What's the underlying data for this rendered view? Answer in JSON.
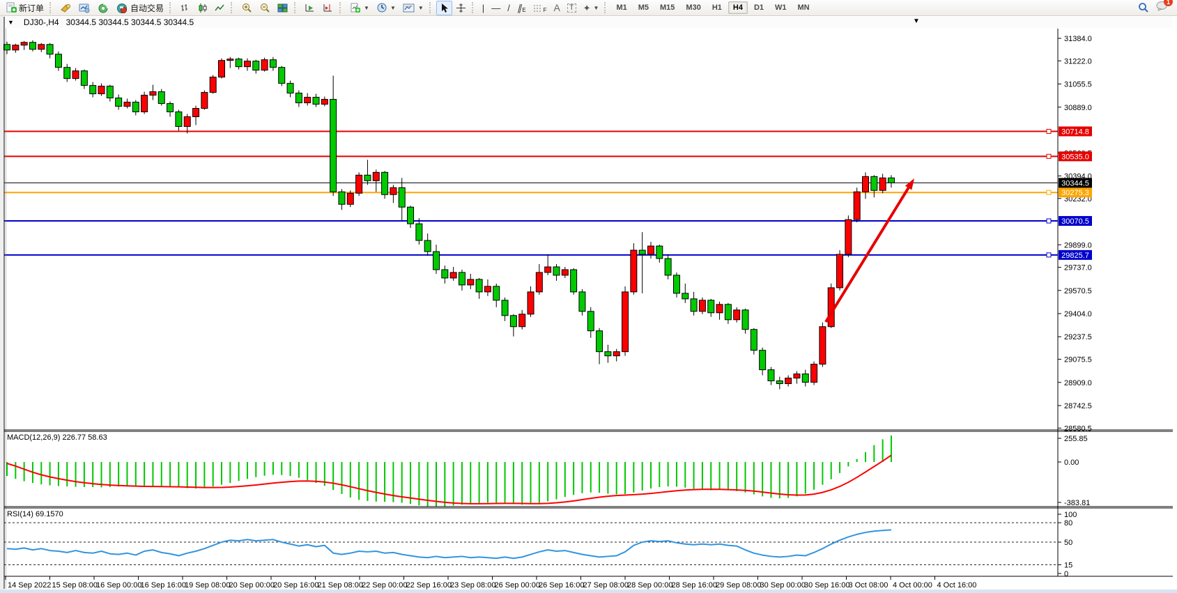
{
  "toolbar": {
    "new_order": "新订单",
    "autotrading": "自动交易",
    "timeframes": [
      "M1",
      "M5",
      "M15",
      "M30",
      "H1",
      "H4",
      "D1",
      "W1",
      "MN"
    ],
    "active_timeframe": "H4",
    "chat_badge": "1",
    "tool_glyphs": {
      "cursor": "➤",
      "crosshair": "+",
      "vline": "|",
      "hline": "—",
      "trendline": "/",
      "channel": "∥",
      "channel_sub": "E",
      "fibo_sub": "F",
      "text": "A",
      "label": "T",
      "arrows": "✦"
    }
  },
  "chart": {
    "collapse_arrow": "▼",
    "symbol_period": "DJ30-,H4",
    "ohlc": "30344.5 30344.5 30344.5 30344.5"
  },
  "chart_data": {
    "type": "candlestick",
    "symbol": "DJ30-",
    "period": "H4",
    "title": "DJ30-,H4 30344.5 30344.5 30344.5 30344.5",
    "colors": {
      "up": "#ff0000",
      "down": "#00ca00",
      "wick": "#000000",
      "macd_hist": "#00c800",
      "macd_signal": "#ff0000",
      "rsi_line": "#3194e0",
      "line_red": "#e60000",
      "line_orange": "#ffa500",
      "line_blue": "#0000cc",
      "current_badge": "#000000",
      "arrow": "#e60000"
    },
    "price_axis_ticks": [
      31384.0,
      31222.0,
      31055.5,
      30889.0,
      30560.5,
      30394.0,
      30232.0,
      29899.0,
      29737.0,
      29570.5,
      29404.0,
      29237.5,
      29075.5,
      28909.0,
      28742.5,
      28580.5
    ],
    "hlines": [
      {
        "price": 30714.8,
        "color": "#e60000"
      },
      {
        "price": 30535.0,
        "color": "#e60000"
      },
      {
        "price": 30275.3,
        "color": "#ffa500"
      },
      {
        "price": 30070.5,
        "color": "#0000cc"
      },
      {
        "price": 29825.7,
        "color": "#0000cc"
      }
    ],
    "current_price": 30344.5,
    "candles": [
      [
        31340,
        31360,
        31270,
        31300
      ],
      [
        31300,
        31345,
        31280,
        31335
      ],
      [
        31335,
        31365,
        31300,
        31355
      ],
      [
        31355,
        31370,
        31290,
        31305
      ],
      [
        31305,
        31350,
        31285,
        31340
      ],
      [
        31340,
        31350,
        31240,
        31270
      ],
      [
        31270,
        31290,
        31150,
        31175
      ],
      [
        31175,
        31200,
        31070,
        31095
      ],
      [
        31095,
        31170,
        31080,
        31150
      ],
      [
        31150,
        31160,
        31020,
        31045
      ],
      [
        31045,
        31070,
        30960,
        30985
      ],
      [
        30985,
        31060,
        30970,
        31040
      ],
      [
        31040,
        31050,
        30930,
        30955
      ],
      [
        30955,
        30980,
        30870,
        30895
      ],
      [
        30895,
        30950,
        30880,
        30925
      ],
      [
        30925,
        30940,
        30830,
        30855
      ],
      [
        30855,
        31000,
        30840,
        30975
      ],
      [
        30975,
        31050,
        30940,
        31000
      ],
      [
        31000,
        31020,
        30900,
        30915
      ],
      [
        30915,
        30930,
        30820,
        30855
      ],
      [
        30855,
        30870,
        30720,
        30750
      ],
      [
        30750,
        30840,
        30700,
        30820
      ],
      [
        30820,
        30900,
        30760,
        30880
      ],
      [
        30880,
        31010,
        30870,
        30995
      ],
      [
        30995,
        31120,
        30985,
        31105
      ],
      [
        31105,
        31240,
        31095,
        31225
      ],
      [
        31225,
        31250,
        31170,
        31235
      ],
      [
        31235,
        31245,
        31160,
        31180
      ],
      [
        31180,
        31240,
        31150,
        31220
      ],
      [
        31220,
        31230,
        31130,
        31155
      ],
      [
        31155,
        31245,
        31145,
        31230
      ],
      [
        31230,
        31250,
        31150,
        31175
      ],
      [
        31175,
        31185,
        31040,
        31060
      ],
      [
        31060,
        31080,
        30960,
        30990
      ],
      [
        30990,
        31010,
        30890,
        30920
      ],
      [
        30920,
        30990,
        30900,
        30960
      ],
      [
        30960,
        30985,
        30890,
        30910
      ],
      [
        30910,
        30965,
        30895,
        30945
      ],
      [
        30945,
        31115,
        30250,
        30280
      ],
      [
        30280,
        30300,
        30150,
        30190
      ],
      [
        30190,
        30290,
        30170,
        30270
      ],
      [
        30270,
        30420,
        30250,
        30400
      ],
      [
        30400,
        30510,
        30330,
        30360
      ],
      [
        30360,
        30440,
        30280,
        30420
      ],
      [
        30420,
        30430,
        30230,
        30260
      ],
      [
        30260,
        30330,
        30200,
        30310
      ],
      [
        30310,
        30380,
        30075,
        30170
      ],
      [
        30170,
        30180,
        30020,
        30050
      ],
      [
        30050,
        30090,
        29900,
        29930
      ],
      [
        29930,
        29980,
        29820,
        29850
      ],
      [
        29850,
        29900,
        29690,
        29720
      ],
      [
        29720,
        29750,
        29620,
        29660
      ],
      [
        29660,
        29740,
        29640,
        29700
      ],
      [
        29700,
        29720,
        29570,
        29610
      ],
      [
        29610,
        29690,
        29580,
        29650
      ],
      [
        29650,
        29660,
        29510,
        29560
      ],
      [
        29560,
        29650,
        29530,
        29600
      ],
      [
        29600,
        29620,
        29450,
        29500
      ],
      [
        29500,
        29520,
        29350,
        29390
      ],
      [
        29390,
        29400,
        29240,
        29310
      ],
      [
        29310,
        29430,
        29290,
        29400
      ],
      [
        29400,
        29600,
        29380,
        29560
      ],
      [
        29560,
        29760,
        29540,
        29700
      ],
      [
        29700,
        29830,
        29680,
        29740
      ],
      [
        29740,
        29760,
        29640,
        29680
      ],
      [
        29680,
        29740,
        29660,
        29720
      ],
      [
        29720,
        29730,
        29540,
        29560
      ],
      [
        29560,
        29580,
        29390,
        29420
      ],
      [
        29420,
        29450,
        29230,
        29280
      ],
      [
        29280,
        29300,
        29040,
        29130
      ],
      [
        29130,
        29180,
        29050,
        29100
      ],
      [
        29100,
        29150,
        29060,
        29130
      ],
      [
        29130,
        29600,
        29100,
        29560
      ],
      [
        29560,
        29910,
        29540,
        29860
      ],
      [
        29860,
        29990,
        29550,
        29830
      ],
      [
        29830,
        29920,
        29800,
        29890
      ],
      [
        29890,
        29900,
        29770,
        29800
      ],
      [
        29800,
        29830,
        29650,
        29680
      ],
      [
        29680,
        29700,
        29520,
        29550
      ],
      [
        29550,
        29620,
        29480,
        29510
      ],
      [
        29510,
        29560,
        29390,
        29420
      ],
      [
        29420,
        29520,
        29400,
        29500
      ],
      [
        29500,
        29510,
        29380,
        29410
      ],
      [
        29410,
        29490,
        29360,
        29470
      ],
      [
        29470,
        29480,
        29330,
        29360
      ],
      [
        29360,
        29450,
        29340,
        29430
      ],
      [
        29430,
        29440,
        29260,
        29290
      ],
      [
        29290,
        29300,
        29110,
        29140
      ],
      [
        29140,
        29160,
        28960,
        29000
      ],
      [
        29000,
        29020,
        28890,
        28920
      ],
      [
        28920,
        28950,
        28860,
        28900
      ],
      [
        28900,
        28960,
        28880,
        28940
      ],
      [
        28940,
        28990,
        28900,
        28970
      ],
      [
        28970,
        29000,
        28880,
        28910
      ],
      [
        28910,
        29060,
        28890,
        29040
      ],
      [
        29040,
        29340,
        29020,
        29310
      ],
      [
        29310,
        29620,
        29300,
        29590
      ],
      [
        29590,
        29860,
        29570,
        29830
      ],
      [
        29830,
        30110,
        29810,
        30080
      ],
      [
        30080,
        30310,
        30060,
        30280
      ],
      [
        30280,
        30420,
        30230,
        30390
      ],
      [
        30390,
        30400,
        30240,
        30290
      ],
      [
        30290,
        30410,
        30270,
        30380
      ],
      [
        30380,
        30400,
        30310,
        30344.5
      ]
    ],
    "time_labels": [
      "14 Sep 2022",
      "15 Sep 08:00",
      "16 Sep 00:00",
      "16 Sep 16:00",
      "19 Sep 08:00",
      "20 Sep 00:00",
      "20 Sep 16:00",
      "21 Sep 08:00",
      "22 Sep 00:00",
      "22 Sep 16:00",
      "23 Sep 08:00",
      "26 Sep 00:00",
      "26 Sep 16:00",
      "27 Sep 08:00",
      "28 Sep 00:00",
      "28 Sep 16:00",
      "29 Sep 08:00",
      "30 Sep 00:00",
      "30 Sep 16:00",
      "3 Oct 08:00",
      "4 Oct 00:00",
      "4 Oct 16:00"
    ],
    "macd": {
      "label": "MACD(12,26,9) 226.77 58.63",
      "value": 226.77,
      "signal_value": 58.63,
      "axis_ticks": [
        "255.85",
        "0.00",
        "-383.81"
      ],
      "histogram": [
        -120,
        -145,
        -165,
        -180,
        -192,
        -200,
        -206,
        -210,
        -213,
        -215,
        -215,
        -218,
        -215,
        -210,
        -205,
        -208,
        -212,
        -210,
        -205,
        -210,
        -218,
        -225,
        -228,
        -222,
        -210,
        -195,
        -180,
        -162,
        -145,
        -130,
        -118,
        -110,
        -112,
        -120,
        -135,
        -155,
        -180,
        -205,
        -240,
        -275,
        -305,
        -325,
        -335,
        -340,
        -342,
        -345,
        -350,
        -360,
        -372,
        -380,
        -383,
        -380,
        -374,
        -366,
        -358,
        -352,
        -350,
        -352,
        -356,
        -362,
        -366,
        -362,
        -352,
        -338,
        -320,
        -300,
        -282,
        -268,
        -262,
        -264,
        -272,
        -278,
        -275,
        -262,
        -245,
        -228,
        -215,
        -210,
        -212,
        -220,
        -230,
        -238,
        -242,
        -240,
        -242,
        -250,
        -262,
        -278,
        -295,
        -308,
        -312,
        -308,
        -295,
        -272,
        -238,
        -195,
        -148,
        -95,
        -38,
        25,
        85,
        145,
        195,
        227
      ],
      "signal": [
        -12,
        -35,
        -62,
        -88,
        -110,
        -128,
        -143,
        -156,
        -168,
        -178,
        -186,
        -193,
        -198,
        -202,
        -205,
        -207,
        -209,
        -210,
        -211,
        -212,
        -213,
        -215,
        -217,
        -219,
        -219,
        -218,
        -215,
        -210,
        -204,
        -197,
        -189,
        -181,
        -174,
        -168,
        -164,
        -163,
        -166,
        -172,
        -182,
        -196,
        -212,
        -229,
        -246,
        -261,
        -275,
        -288,
        -299,
        -309,
        -319,
        -329,
        -338,
        -346,
        -352,
        -356,
        -358,
        -358,
        -357,
        -356,
        -355,
        -355,
        -356,
        -357,
        -357,
        -355,
        -350,
        -343,
        -334,
        -323,
        -312,
        -302,
        -294,
        -288,
        -284,
        -280,
        -276,
        -270,
        -262,
        -254,
        -247,
        -241,
        -237,
        -235,
        -234,
        -235,
        -237,
        -240,
        -244,
        -250,
        -258,
        -267,
        -275,
        -281,
        -284,
        -283,
        -276,
        -261,
        -239,
        -210,
        -174,
        -132,
        -86,
        -39,
        8,
        58
      ]
    },
    "rsi": {
      "label": "RSI(14) 69.1570",
      "value": 69.157,
      "axis_ticks": [
        100,
        80,
        50,
        15,
        0
      ],
      "dashed_levels": [
        80,
        50,
        15
      ],
      "values": [
        40,
        39,
        41,
        38,
        40,
        37,
        36,
        34,
        37,
        34,
        33,
        36,
        32,
        31,
        33,
        30,
        36,
        38,
        34,
        32,
        29,
        33,
        36,
        40,
        45,
        50,
        53,
        52,
        54,
        52,
        53,
        54,
        50,
        47,
        44,
        46,
        43,
        45,
        33,
        31,
        33,
        36,
        35,
        36,
        33,
        34,
        31,
        29,
        27,
        26,
        28,
        26,
        27,
        28,
        26,
        27,
        26,
        25,
        27,
        25,
        27,
        31,
        35,
        38,
        36,
        37,
        34,
        31,
        29,
        27,
        28,
        29,
        35,
        45,
        50,
        52,
        51,
        52,
        49,
        47,
        46,
        47,
        46,
        47,
        45,
        44,
        38,
        33,
        30,
        28,
        27,
        28,
        30,
        29,
        34,
        40,
        47,
        53,
        58,
        62,
        65,
        67,
        68,
        69
      ]
    },
    "trend_arrow": {
      "from": [
        1185,
        462
      ],
      "to": [
        1312,
        256
      ]
    }
  }
}
